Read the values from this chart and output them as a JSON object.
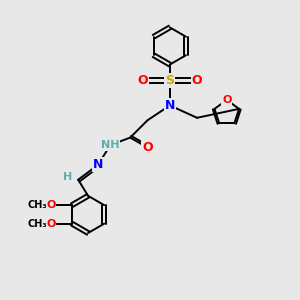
{
  "bg_color": "#e8e8e8",
  "atom_colors": {
    "C": "#000000",
    "N": "#0000ff",
    "O": "#ff0000",
    "S": "#ccaa00",
    "H": "#5aafaf"
  },
  "bond_color": "#000000",
  "figsize": [
    3.0,
    3.0
  ],
  "dpi": 100,
  "xlim": [
    0,
    12
  ],
  "ylim": [
    0,
    12
  ]
}
